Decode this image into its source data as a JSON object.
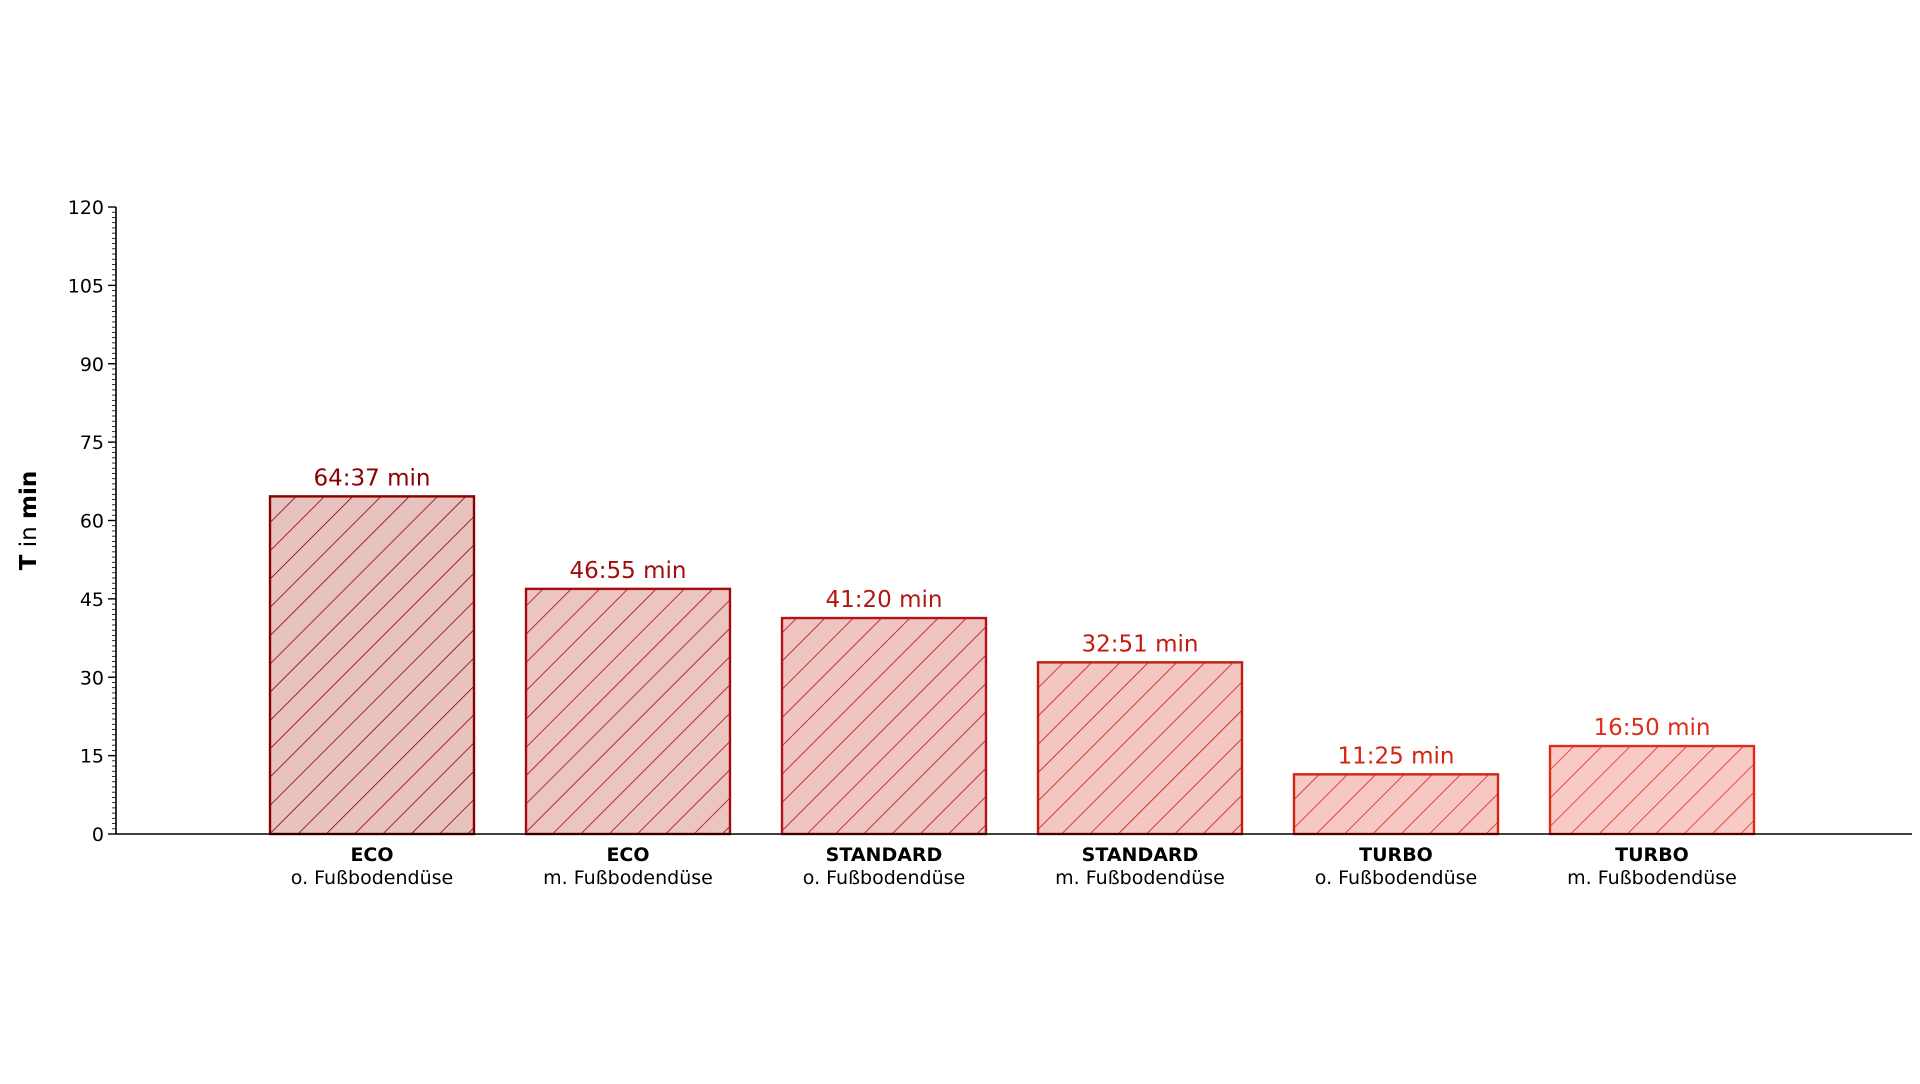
{
  "chart_data": {
    "type": "bar",
    "ylabel_bold": "T",
    "ylabel_mid": " in ",
    "ylabel_unit": "min",
    "ylim": [
      0,
      120
    ],
    "yticks": [
      0,
      15,
      30,
      45,
      60,
      75,
      90,
      105,
      120
    ],
    "grid": false,
    "legend": "none",
    "categories": [
      {
        "mode": "ECO",
        "sub": "o. Fußbodendüse"
      },
      {
        "mode": "ECO",
        "sub": "m. Fußbodendüse"
      },
      {
        "mode": "STANDARD",
        "sub": "o. Fußbodendüse"
      },
      {
        "mode": "STANDARD",
        "sub": "m. Fußbodendüse"
      },
      {
        "mode": "TURBO",
        "sub": "o. Fußbodendüse"
      },
      {
        "mode": "TURBO",
        "sub": "m. Fußbodendüse"
      }
    ],
    "values": [
      64.617,
      46.917,
      41.333,
      32.85,
      11.417,
      16.833
    ],
    "labels": [
      "64:37 min",
      "46:55 min",
      "41:20 min",
      "32:51 min",
      "11:25 min",
      "16:50 min"
    ],
    "colors": {
      "edge": [
        "#8b0000",
        "#a30d0d",
        "#b31414",
        "#c41b10",
        "#d42411",
        "#dc2e18"
      ],
      "fill": [
        "#e8c2bf",
        "#ecc4c1",
        "#f0c4c0",
        "#f4c6c2",
        "#f7c8c3",
        "#f9cac5"
      ],
      "axis": "#000000"
    }
  }
}
